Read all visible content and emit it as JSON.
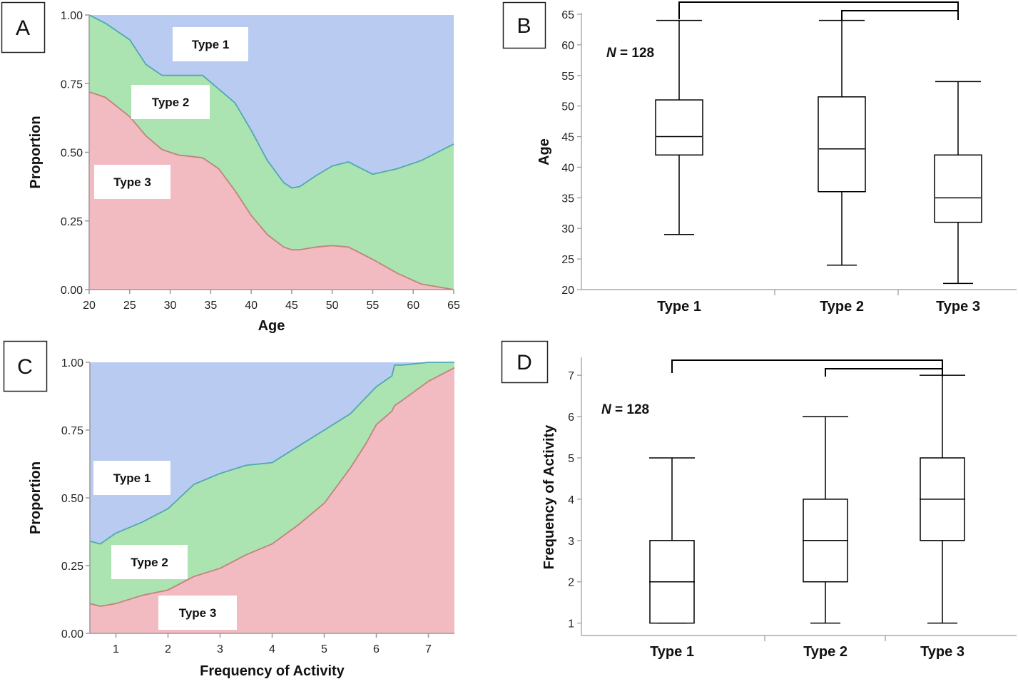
{
  "colors": {
    "type1": "#b9cbf1",
    "type2": "#abe3b1",
    "type3": "#f1bbc1",
    "type1_line": "#4fa9b0",
    "type3_line": "#c0847a",
    "axis": "#999999",
    "box": "#000000"
  },
  "chart_data": [
    {
      "panel": "A",
      "type": "area",
      "xlabel": "Age",
      "ylabel": "Proportion",
      "xlim": [
        20,
        65
      ],
      "ylim": [
        0,
        1
      ],
      "x_ticks": [
        "20",
        "25",
        "30",
        "35",
        "40",
        "45",
        "50",
        "55",
        "60",
        "65"
      ],
      "y_ticks": [
        "0.00",
        "0.25",
        "0.50",
        "0.75",
        "1.00"
      ],
      "x": [
        20,
        22,
        25,
        27,
        29,
        31,
        34,
        36,
        38,
        40,
        42,
        44,
        45,
        46,
        48,
        50,
        52,
        55,
        58,
        61,
        63,
        65
      ],
      "series": [
        {
          "name": "Type 3",
          "values": [
            0.72,
            0.7,
            0.63,
            0.56,
            0.51,
            0.49,
            0.48,
            0.44,
            0.36,
            0.27,
            0.2,
            0.155,
            0.145,
            0.145,
            0.155,
            0.16,
            0.155,
            0.11,
            0.06,
            0.02,
            0.01,
            0.0
          ]
        },
        {
          "name": "Type 2",
          "values": [
            0.28,
            0.27,
            0.28,
            0.26,
            0.27,
            0.29,
            0.3,
            0.29,
            0.32,
            0.31,
            0.27,
            0.235,
            0.225,
            0.23,
            0.26,
            0.29,
            0.31,
            0.31,
            0.38,
            0.45,
            0.49,
            0.53
          ]
        },
        {
          "name": "Type 1",
          "values": [
            0.0,
            0.03,
            0.09,
            0.18,
            0.22,
            0.22,
            0.22,
            0.27,
            0.32,
            0.42,
            0.53,
            0.61,
            0.63,
            0.625,
            0.585,
            0.55,
            0.535,
            0.58,
            0.56,
            0.53,
            0.5,
            0.47
          ]
        }
      ],
      "labels": [
        {
          "text": "Type 1"
        },
        {
          "text": "Type 2"
        },
        {
          "text": "Type 3"
        }
      ]
    },
    {
      "panel": "B",
      "type": "box",
      "ylabel": "Age",
      "ylim": [
        20,
        65
      ],
      "y_ticks": [
        "20",
        "25",
        "30",
        "35",
        "40",
        "45",
        "50",
        "55",
        "60",
        "65"
      ],
      "categories": [
        "Type 1",
        "Type 2",
        "Type 3"
      ],
      "boxes": [
        {
          "min": 29,
          "q1": 42,
          "median": 45,
          "q3": 51,
          "max": 64
        },
        {
          "min": 24,
          "q1": 36,
          "median": 43,
          "q3": 51.5,
          "max": 64
        },
        {
          "min": 21,
          "q1": 31,
          "median": 35,
          "q3": 42,
          "max": 54
        }
      ],
      "n_label": "N = 128",
      "n_label_italic": "N",
      "n_label_rest": " = 128",
      "brackets": [
        [
          "Type 1",
          "Type 3"
        ],
        [
          "Type 2",
          "Type 3"
        ]
      ]
    },
    {
      "panel": "C",
      "type": "area",
      "xlabel": "Frequency of Activity",
      "ylabel": "Proportion",
      "xlim": [
        0.5,
        7.5
      ],
      "ylim": [
        0,
        1
      ],
      "x_ticks": [
        "1",
        "2",
        "3",
        "4",
        "5",
        "6",
        "7"
      ],
      "y_ticks": [
        "0.00",
        "0.25",
        "0.50",
        "0.75",
        "1.00"
      ],
      "x": [
        0.5,
        0.7,
        1.0,
        1.5,
        2.0,
        2.5,
        3.0,
        3.5,
        4.0,
        4.5,
        5.0,
        5.5,
        5.8,
        6.0,
        6.3,
        6.35,
        6.5,
        7.0,
        7.5
      ],
      "series": [
        {
          "name": "Type 3",
          "values": [
            0.11,
            0.1,
            0.11,
            0.14,
            0.16,
            0.21,
            0.24,
            0.29,
            0.33,
            0.4,
            0.48,
            0.61,
            0.7,
            0.77,
            0.82,
            0.84,
            0.86,
            0.93,
            0.98
          ]
        },
        {
          "name": "Type 2",
          "values": [
            0.23,
            0.23,
            0.26,
            0.27,
            0.3,
            0.34,
            0.35,
            0.33,
            0.3,
            0.29,
            0.27,
            0.2,
            0.17,
            0.14,
            0.13,
            0.15,
            0.13,
            0.07,
            0.02
          ]
        },
        {
          "name": "Type 1",
          "values": [
            0.66,
            0.67,
            0.63,
            0.59,
            0.54,
            0.45,
            0.41,
            0.38,
            0.37,
            0.31,
            0.25,
            0.19,
            0.13,
            0.09,
            0.05,
            0.01,
            0.01,
            0.0,
            0.0
          ]
        }
      ],
      "labels": [
        {
          "text": "Type 1"
        },
        {
          "text": "Type 2"
        },
        {
          "text": "Type 3"
        }
      ]
    },
    {
      "panel": "D",
      "type": "box",
      "ylabel": "Frequency of Activity",
      "ylim": [
        0.7,
        7.4
      ],
      "y_ticks": [
        "1",
        "2",
        "3",
        "4",
        "5",
        "6",
        "7"
      ],
      "categories": [
        "Type 1",
        "Type 2",
        "Type 3"
      ],
      "boxes": [
        {
          "min": 1,
          "q1": 1,
          "median": 2,
          "q3": 3,
          "max": 5
        },
        {
          "min": 1,
          "q1": 2,
          "median": 3,
          "q3": 4,
          "max": 6
        },
        {
          "min": 1,
          "q1": 3,
          "median": 4,
          "q3": 5,
          "max": 7
        }
      ],
      "n_label": "N = 128",
      "n_label_italic": "N",
      "n_label_rest": " = 128",
      "brackets": [
        [
          "Type 1",
          "Type 3"
        ],
        [
          "Type 2",
          "Type 3"
        ]
      ]
    }
  ]
}
